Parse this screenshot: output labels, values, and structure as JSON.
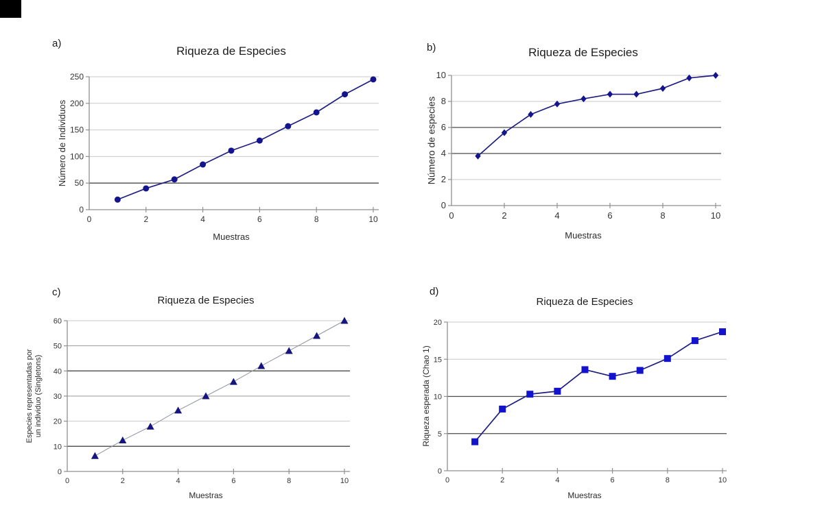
{
  "page": {
    "background": "#ffffff",
    "corner_artifact_color": "#000000"
  },
  "colors": {
    "line_navy": "#1e1e82",
    "line_gray": "#8f93a2",
    "marker_navy": "#14148c",
    "marker_bright_blue": "#1313cb",
    "grid_dark": "#4a4a4a",
    "grid_mid": "#9a9a9a",
    "grid_light": "#c9c9c9",
    "axis": "#8f8f8f",
    "tick_text": "#333333"
  },
  "chart_data": [
    {
      "type": "line",
      "panel_label": "a)",
      "title": "Riqueza de Especies",
      "xlabel": "Muestras",
      "ylabel": "Número de Individuos",
      "x": [
        1,
        2,
        3,
        4,
        5,
        6,
        7,
        8,
        9,
        10
      ],
      "values": [
        19,
        40,
        57,
        85,
        111,
        130,
        157,
        183,
        217,
        245
      ],
      "xlim": [
        0,
        10
      ],
      "ylim": [
        0,
        250
      ],
      "xticks": [
        0,
        2,
        4,
        6,
        8,
        10
      ],
      "yticks": [
        0,
        50,
        100,
        150,
        200,
        250
      ],
      "grid_emphasis": {
        "dark": [
          50
        ],
        "mid": []
      },
      "marker": "circle",
      "marker_color": "#14148c",
      "line_color": "#1e1e82",
      "line_width": 1.7
    },
    {
      "type": "line",
      "panel_label": "b)",
      "title": "Riqueza de Especies",
      "xlabel": "Muestras",
      "ylabel": "Número de especies",
      "x": [
        1,
        2,
        3,
        4,
        5,
        6,
        7,
        8,
        9,
        10
      ],
      "values": [
        3.8,
        5.6,
        7.0,
        7.8,
        8.2,
        8.55,
        8.55,
        9.0,
        9.8,
        10.0
      ],
      "xlim": [
        0,
        10
      ],
      "ylim": [
        0,
        10
      ],
      "xticks": [
        0,
        2,
        4,
        6,
        8,
        10
      ],
      "yticks": [
        0,
        2,
        4,
        6,
        8,
        10
      ],
      "grid_emphasis": {
        "dark": [
          4,
          6
        ],
        "mid": []
      },
      "marker": "diamond",
      "marker_color": "#14148c",
      "line_color": "#1e1e82",
      "line_width": 1.7
    },
    {
      "type": "line",
      "panel_label": "c)",
      "title": "Riqueza de Especies",
      "xlabel": "Muestras",
      "ylabel": "Especies representadas por un individuo (Singletons)",
      "ylabel_lines": [
        "Especies representadas por",
        "un individuo (Singletons)"
      ],
      "x": [
        1,
        2,
        3,
        4,
        5,
        6,
        7,
        8,
        9,
        10
      ],
      "values": [
        6.2,
        12.4,
        17.9,
        24.3,
        30.0,
        35.7,
        42.0,
        48.0,
        54.0,
        60.0
      ],
      "xlim": [
        0,
        10
      ],
      "ylim": [
        0,
        60
      ],
      "xticks": [
        0,
        2,
        4,
        6,
        8,
        10
      ],
      "yticks": [
        0,
        10,
        20,
        30,
        40,
        50,
        60
      ],
      "grid_emphasis": {
        "dark": [
          10,
          40
        ],
        "mid": [
          30,
          50
        ]
      },
      "marker": "triangle",
      "marker_color": "#15157d",
      "line_color": "#8f93a2",
      "line_width": 1
    },
    {
      "type": "line",
      "panel_label": "d)",
      "title": "Riqueza de Especies",
      "xlabel": "Muestras",
      "ylabel": "Riqueza esperada (Chao 1)",
      "x": [
        1,
        2,
        3,
        4,
        5,
        6,
        7,
        8,
        9,
        10
      ],
      "values": [
        3.9,
        8.3,
        10.3,
        10.7,
        13.6,
        12.7,
        13.5,
        15.1,
        17.5,
        18.7
      ],
      "xlim": [
        0,
        10
      ],
      "ylim": [
        0,
        20
      ],
      "xticks": [
        0,
        2,
        4,
        6,
        8,
        10
      ],
      "yticks": [
        0,
        5,
        10,
        15,
        20
      ],
      "grid_emphasis": {
        "dark": [
          5,
          10
        ],
        "mid": []
      },
      "marker": "square",
      "marker_color": "#1313cb",
      "line_color": "#1e1e82",
      "line_width": 1.7
    }
  ]
}
